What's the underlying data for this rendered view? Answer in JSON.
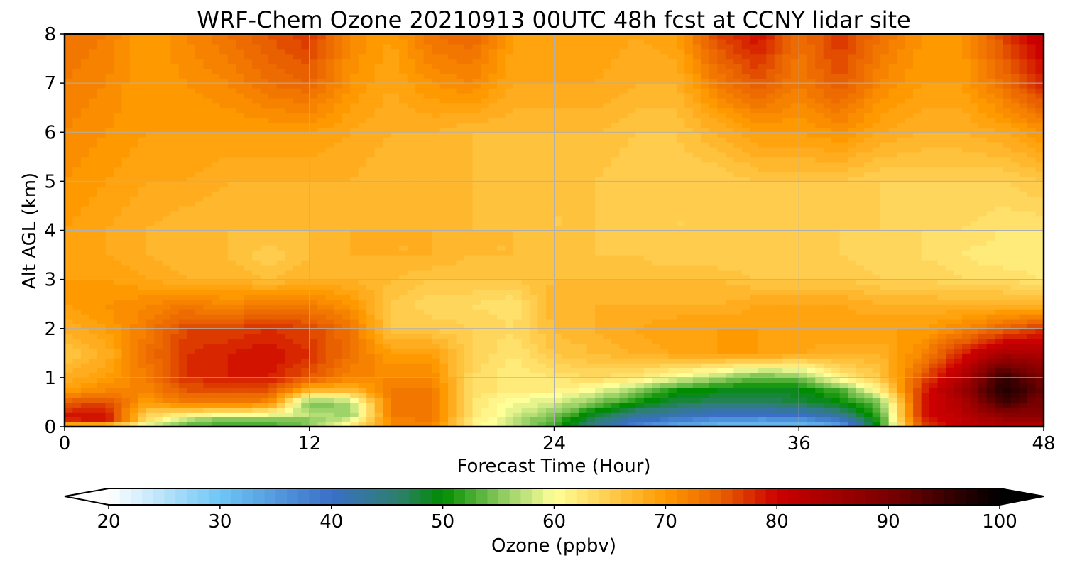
{
  "chart_data": {
    "type": "heatmap",
    "title": "WRF-Chem Ozone  20210913 00UTC 48h fcst at CCNY lidar site",
    "xlabel": "Forecast Time (Hour)",
    "ylabel": "Alt AGL (km)",
    "xlim": [
      0,
      48
    ],
    "ylim": [
      0,
      8
    ],
    "xticks": [
      0,
      12,
      24,
      36,
      48
    ],
    "xtick_labels": [
      "0",
      "12",
      "24",
      "36",
      "48"
    ],
    "yticks": [
      0,
      1,
      2,
      3,
      4,
      5,
      6,
      7,
      8
    ],
    "ytick_labels": [
      "0",
      "1",
      "2",
      "3",
      "4",
      "5",
      "6",
      "7",
      "8"
    ],
    "grid": true,
    "x_hours": [
      0,
      2,
      4,
      6,
      8,
      10,
      12,
      14,
      16,
      18,
      20,
      22,
      24,
      26,
      28,
      30,
      32,
      34,
      36,
      38,
      40,
      42,
      44,
      46,
      48
    ],
    "z_km": [
      0,
      0.1,
      0.25,
      0.5,
      0.75,
      1,
      1.5,
      2,
      2.5,
      3,
      3.5,
      4,
      5,
      6,
      7,
      8
    ],
    "ozone_ppbv": [
      [
        60,
        59,
        57,
        55,
        54,
        54,
        56,
        62,
        72,
        72,
        62,
        58,
        53,
        45,
        37,
        33,
        31,
        30,
        30,
        33,
        52,
        75,
        82,
        84,
        84
      ],
      [
        78,
        80,
        64,
        55,
        53,
        53,
        55,
        60,
        72,
        73,
        62,
        58,
        53,
        46,
        40,
        37,
        35,
        34,
        34,
        38,
        52,
        78,
        82,
        85,
        86
      ],
      [
        79,
        80,
        65,
        62,
        60,
        60,
        58,
        56,
        73,
        74,
        63,
        59,
        55,
        49,
        44,
        42,
        40,
        40,
        40,
        44,
        53,
        79,
        83,
        88,
        88
      ],
      [
        76,
        77,
        70,
        73,
        73,
        72,
        54,
        57,
        73,
        73,
        63,
        60,
        59,
        55,
        51,
        48,
        47,
        47,
        48,
        50,
        55,
        79,
        84,
        95,
        90
      ],
      [
        70,
        72,
        72,
        76,
        76,
        76,
        68,
        67,
        73,
        73,
        64,
        62,
        62,
        60,
        56,
        51,
        50,
        49,
        50,
        53,
        62,
        78,
        86,
        98,
        92
      ],
      [
        68,
        70,
        73,
        78,
        79,
        79,
        76,
        72,
        72,
        72,
        64,
        62,
        63,
        64,
        63,
        60,
        57,
        54,
        55,
        62,
        66,
        76,
        84,
        97,
        90
      ],
      [
        66,
        68,
        74,
        78,
        79,
        80,
        78,
        74,
        70,
        70,
        65,
        63,
        66,
        67,
        68,
        69,
        70,
        70,
        69,
        68,
        68,
        72,
        79,
        85,
        84
      ],
      [
        68,
        70,
        73,
        77,
        77,
        78,
        77,
        74,
        66,
        66,
        65,
        64,
        67,
        68,
        69,
        70,
        70,
        70,
        70,
        70,
        70,
        70,
        72,
        75,
        78
      ],
      [
        70,
        71,
        72,
        73,
        72,
        73,
        73,
        71,
        66,
        64,
        64,
        63,
        68,
        68,
        68,
        68,
        68,
        69,
        69,
        69,
        68,
        68,
        68,
        68,
        68
      ],
      [
        70,
        70,
        69,
        68,
        68,
        67,
        68,
        68,
        67,
        66,
        66,
        66,
        67,
        67,
        67,
        67,
        67,
        66,
        66,
        66,
        65,
        65,
        64,
        64,
        63
      ],
      [
        70,
        69,
        68,
        67,
        67,
        65,
        67,
        68,
        68,
        68,
        67,
        67,
        67,
        66,
        66,
        65,
        65,
        65,
        65,
        65,
        64,
        64,
        63,
        62,
        62
      ],
      [
        70,
        69,
        68,
        67,
        67,
        67,
        67,
        68,
        68,
        68,
        67,
        67,
        66,
        66,
        65,
        65,
        65,
        65,
        65,
        65,
        65,
        64,
        64,
        63,
        63
      ],
      [
        71,
        70,
        69,
        69,
        68,
        68,
        68,
        68,
        67,
        67,
        67,
        66,
        66,
        66,
        65,
        65,
        65,
        66,
        66,
        66,
        65,
        65,
        65,
        65,
        66
      ],
      [
        72,
        71,
        70,
        70,
        70,
        70,
        70,
        69,
        68,
        68,
        67,
        67,
        67,
        67,
        66,
        66,
        68,
        70,
        70,
        71,
        69,
        68,
        68,
        69,
        71
      ],
      [
        73,
        72,
        70,
        71,
        72,
        74,
        75,
        71,
        69,
        71,
        72,
        69,
        69,
        69,
        68,
        68,
        73,
        76,
        73,
        76,
        72,
        70,
        70,
        74,
        79
      ],
      [
        74,
        73,
        70,
        72,
        74,
        76,
        78,
        72,
        70,
        74,
        75,
        70,
        70,
        70,
        69,
        70,
        77,
        80,
        74,
        78,
        74,
        71,
        71,
        77,
        82
      ]
    ],
    "colorbar": {
      "label": "Ozone  (ppbv)",
      "range": [
        20,
        100
      ],
      "ticks": [
        20,
        30,
        40,
        50,
        60,
        70,
        80,
        90,
        100
      ],
      "tick_labels": [
        "20",
        "30",
        "40",
        "50",
        "60",
        "70",
        "80",
        "90",
        "100"
      ],
      "extend": "both",
      "orientation": "horizontal",
      "placement": "bottom"
    },
    "colormap_stops": [
      {
        "value": 20,
        "color": "#ffffff"
      },
      {
        "value": 30,
        "color": "#6ec6f5"
      },
      {
        "value": 40,
        "color": "#3a6fc8"
      },
      {
        "value": 46,
        "color": "#2e7f6f"
      },
      {
        "value": 50,
        "color": "#008c00"
      },
      {
        "value": 56,
        "color": "#9ed36a"
      },
      {
        "value": 60,
        "color": "#ffff99"
      },
      {
        "value": 70,
        "color": "#ff9900"
      },
      {
        "value": 75,
        "color": "#e86000"
      },
      {
        "value": 80,
        "color": "#cc0000"
      },
      {
        "value": 90,
        "color": "#7a0000"
      },
      {
        "value": 100,
        "color": "#000000"
      }
    ],
    "grid_color": "#b0b0b0"
  }
}
